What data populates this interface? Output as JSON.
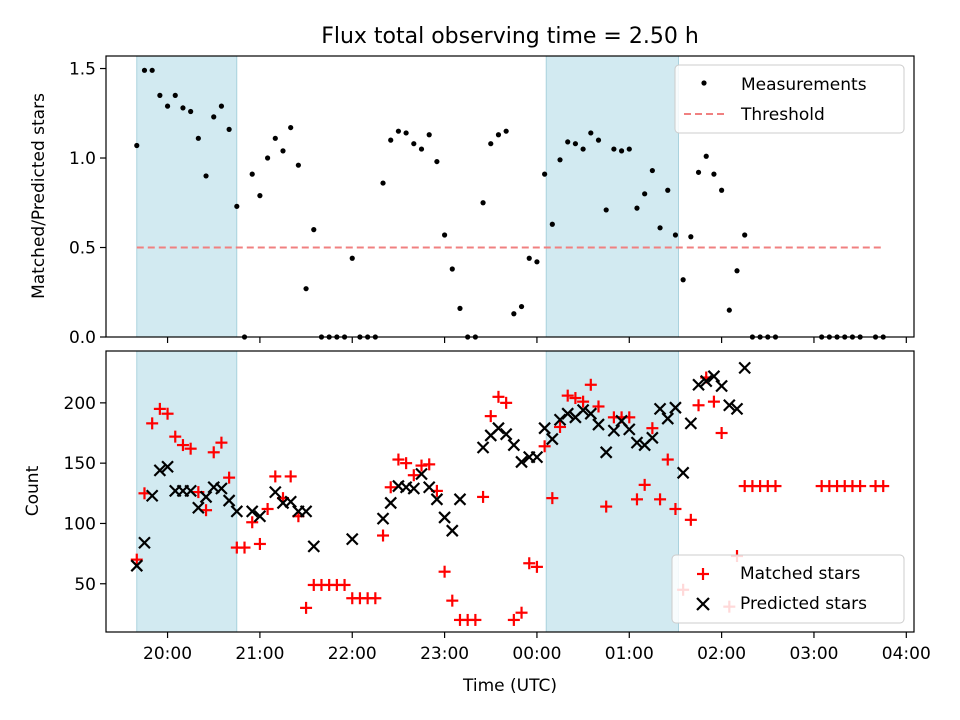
{
  "chart_data": [
    {
      "type": "scatter",
      "title": "Flux total observing time = 2.50 h",
      "ylabel": "Matched/Predicted stars",
      "xlabel": "",
      "xlim": [
        "19:20",
        "04:05"
      ],
      "ylim": [
        0,
        1.57
      ],
      "yticks": [
        "0.0",
        "0.5",
        "1.0",
        "1.5"
      ],
      "ytick_values": [
        0,
        0.5,
        1.0,
        1.5
      ],
      "legend_position": "upper right",
      "shaded_intervals": [
        [
          "19:40",
          "20:45"
        ],
        [
          "00:06",
          "01:32"
        ]
      ],
      "threshold": {
        "name": "Threshold",
        "value": 0.5,
        "x_range": [
          "19:40",
          "03:45"
        ],
        "color": "#f08080"
      },
      "series": [
        {
          "name": "Measurements",
          "marker": "dot",
          "color": "#000000",
          "points": [
            [
              "19:40",
              1.07
            ],
            [
              "19:45",
              1.49
            ],
            [
              "19:50",
              1.49
            ],
            [
              "19:55",
              1.35
            ],
            [
              "20:00",
              1.29
            ],
            [
              "20:05",
              1.35
            ],
            [
              "20:10",
              1.28
            ],
            [
              "20:15",
              1.26
            ],
            [
              "20:20",
              1.11
            ],
            [
              "20:25",
              0.9
            ],
            [
              "20:30",
              1.23
            ],
            [
              "20:35",
              1.29
            ],
            [
              "20:40",
              1.16
            ],
            [
              "20:45",
              0.73
            ],
            [
              "20:50",
              0.0
            ],
            [
              "20:55",
              0.91
            ],
            [
              "21:00",
              0.79
            ],
            [
              "21:05",
              1.0
            ],
            [
              "21:10",
              1.11
            ],
            [
              "21:15",
              1.04
            ],
            [
              "21:20",
              1.17
            ],
            [
              "21:25",
              0.96
            ],
            [
              "21:30",
              0.27
            ],
            [
              "21:35",
              0.6
            ],
            [
              "21:40",
              0.0
            ],
            [
              "21:45",
              0.0
            ],
            [
              "21:50",
              0.0
            ],
            [
              "21:55",
              0.0
            ],
            [
              "22:00",
              0.44
            ],
            [
              "22:05",
              0.0
            ],
            [
              "22:10",
              0.0
            ],
            [
              "22:15",
              0.0
            ],
            [
              "22:20",
              0.86
            ],
            [
              "22:25",
              1.1
            ],
            [
              "22:30",
              1.15
            ],
            [
              "22:35",
              1.14
            ],
            [
              "22:40",
              1.08
            ],
            [
              "22:45",
              1.05
            ],
            [
              "22:50",
              1.13
            ],
            [
              "22:55",
              0.98
            ],
            [
              "23:00",
              0.57
            ],
            [
              "23:05",
              0.38
            ],
            [
              "23:10",
              0.16
            ],
            [
              "23:15",
              0.0
            ],
            [
              "23:20",
              0.0
            ],
            [
              "23:25",
              0.75
            ],
            [
              "23:30",
              1.08
            ],
            [
              "23:35",
              1.13
            ],
            [
              "23:40",
              1.15
            ],
            [
              "23:45",
              0.13
            ],
            [
              "23:50",
              0.17
            ],
            [
              "23:55",
              0.44
            ],
            [
              "00:00",
              0.42
            ],
            [
              "00:05",
              0.91
            ],
            [
              "00:10",
              0.63
            ],
            [
              "00:15",
              0.99
            ],
            [
              "00:20",
              1.09
            ],
            [
              "00:25",
              1.08
            ],
            [
              "00:30",
              1.05
            ],
            [
              "00:35",
              1.14
            ],
            [
              "00:40",
              1.1
            ],
            [
              "00:45",
              0.71
            ],
            [
              "00:50",
              1.05
            ],
            [
              "00:55",
              1.04
            ],
            [
              "01:00",
              1.05
            ],
            [
              "01:05",
              0.72
            ],
            [
              "01:10",
              0.8
            ],
            [
              "01:15",
              0.93
            ],
            [
              "01:20",
              0.61
            ],
            [
              "01:25",
              0.82
            ],
            [
              "01:30",
              0.57
            ],
            [
              "01:35",
              0.32
            ],
            [
              "01:40",
              0.56
            ],
            [
              "01:45",
              0.92
            ],
            [
              "01:50",
              1.01
            ],
            [
              "01:55",
              0.91
            ],
            [
              "02:00",
              0.82
            ],
            [
              "02:05",
              0.15
            ],
            [
              "02:10",
              0.37
            ],
            [
              "02:15",
              0.57
            ],
            [
              "02:20",
              0.0
            ],
            [
              "02:25",
              0.0
            ],
            [
              "02:30",
              0.0
            ],
            [
              "02:35",
              0.0
            ],
            [
              "03:05",
              0.0
            ],
            [
              "03:10",
              0.0
            ],
            [
              "03:15",
              0.0
            ],
            [
              "03:20",
              0.0
            ],
            [
              "03:25",
              0.0
            ],
            [
              "03:30",
              0.0
            ],
            [
              "03:40",
              0.0
            ],
            [
              "03:45",
              0.0
            ]
          ]
        }
      ],
      "legend": [
        "Measurements",
        "Threshold"
      ]
    },
    {
      "type": "scatter",
      "title": "",
      "ylabel": "Count",
      "xlabel": "Time (UTC)",
      "xlim": [
        "19:20",
        "04:05"
      ],
      "ylim": [
        10,
        243
      ],
      "yticks": [
        "50",
        "100",
        "150",
        "200"
      ],
      "ytick_values": [
        50,
        100,
        150,
        200
      ],
      "xticks": [
        "20:00",
        "21:00",
        "22:00",
        "23:00",
        "00:00",
        "01:00",
        "02:00",
        "03:00",
        "04:00"
      ],
      "legend_position": "lower right",
      "shaded_intervals": [
        [
          "19:40",
          "20:45"
        ],
        [
          "00:06",
          "01:32"
        ]
      ],
      "series": [
        {
          "name": "Matched stars",
          "marker": "plus",
          "color": "#ff0000",
          "points": [
            [
              "19:40",
              70
            ],
            [
              "19:45",
              125
            ],
            [
              "19:50",
              183
            ],
            [
              "19:55",
              195
            ],
            [
              "20:00",
              191
            ],
            [
              "20:05",
              172
            ],
            [
              "20:10",
              165
            ],
            [
              "20:15",
              162
            ],
            [
              "20:20",
              126
            ],
            [
              "20:25",
              111
            ],
            [
              "20:30",
              159
            ],
            [
              "20:35",
              167
            ],
            [
              "20:40",
              138
            ],
            [
              "20:45",
              80
            ],
            [
              "20:50",
              80
            ],
            [
              "20:55",
              101
            ],
            [
              "21:00",
              83
            ],
            [
              "21:05",
              112
            ],
            [
              "21:10",
              139
            ],
            [
              "21:15",
              121
            ],
            [
              "21:20",
              139
            ],
            [
              "21:25",
              106
            ],
            [
              "21:30",
              30
            ],
            [
              "21:35",
              49
            ],
            [
              "21:40",
              49
            ],
            [
              "21:45",
              49
            ],
            [
              "21:50",
              49
            ],
            [
              "21:55",
              49
            ],
            [
              "22:00",
              38
            ],
            [
              "22:05",
              38
            ],
            [
              "22:10",
              38
            ],
            [
              "22:15",
              38
            ],
            [
              "22:20",
              90
            ],
            [
              "22:25",
              130
            ],
            [
              "22:30",
              153
            ],
            [
              "22:35",
              150
            ],
            [
              "22:40",
              140
            ],
            [
              "22:45",
              148
            ],
            [
              "22:50",
              149
            ],
            [
              "22:55",
              127
            ],
            [
              "23:00",
              60
            ],
            [
              "23:05",
              36
            ],
            [
              "23:10",
              20
            ],
            [
              "23:15",
              20
            ],
            [
              "23:20",
              20
            ],
            [
              "23:25",
              122
            ],
            [
              "23:30",
              189
            ],
            [
              "23:35",
              205
            ],
            [
              "23:40",
              200
            ],
            [
              "23:45",
              20
            ],
            [
              "23:50",
              26
            ],
            [
              "23:55",
              67
            ],
            [
              "00:00",
              64
            ],
            [
              "00:05",
              164
            ],
            [
              "00:10",
              121
            ],
            [
              "00:15",
              180
            ],
            [
              "00:20",
              206
            ],
            [
              "00:25",
              204
            ],
            [
              "00:30",
              201
            ],
            [
              "00:35",
              215
            ],
            [
              "00:40",
              197
            ],
            [
              "00:45",
              114
            ],
            [
              "00:50",
              188
            ],
            [
              "00:55",
              188
            ],
            [
              "01:00",
              188
            ],
            [
              "01:05",
              120
            ],
            [
              "01:10",
              132
            ],
            [
              "01:15",
              179
            ],
            [
              "01:20",
              120
            ],
            [
              "01:25",
              153
            ],
            [
              "01:30",
              112
            ],
            [
              "01:35",
              45
            ],
            [
              "01:40",
              103
            ],
            [
              "01:45",
              198
            ],
            [
              "01:50",
              221
            ],
            [
              "01:55",
              201
            ],
            [
              "02:00",
              175
            ],
            [
              "02:05",
              31
            ],
            [
              "02:10",
              73
            ],
            [
              "02:15",
              131
            ],
            [
              "02:20",
              131
            ],
            [
              "02:25",
              131
            ],
            [
              "02:30",
              131
            ],
            [
              "02:35",
              131
            ],
            [
              "03:05",
              131
            ],
            [
              "03:10",
              131
            ],
            [
              "03:15",
              131
            ],
            [
              "03:20",
              131
            ],
            [
              "03:25",
              131
            ],
            [
              "03:30",
              131
            ],
            [
              "03:40",
              131
            ],
            [
              "03:45",
              131
            ]
          ]
        },
        {
          "name": "Predicted stars",
          "marker": "x",
          "color": "#000000",
          "points": [
            [
              "19:40",
              65
            ],
            [
              "19:45",
              84
            ],
            [
              "19:50",
              123
            ],
            [
              "19:55",
              144
            ],
            [
              "20:00",
              147
            ],
            [
              "20:05",
              127
            ],
            [
              "20:10",
              127
            ],
            [
              "20:15",
              127
            ],
            [
              "20:20",
              113
            ],
            [
              "20:25",
              122
            ],
            [
              "20:30",
              130
            ],
            [
              "20:35",
              129
            ],
            [
              "20:40",
              119
            ],
            [
              "20:45",
              110
            ],
            [
              "20:55",
              110
            ],
            [
              "21:00",
              106
            ],
            [
              "21:10",
              126
            ],
            [
              "21:15",
              117
            ],
            [
              "21:20",
              118
            ],
            [
              "21:25",
              110
            ],
            [
              "21:30",
              110
            ],
            [
              "21:35",
              81
            ],
            [
              "22:00",
              87
            ],
            [
              "22:20",
              104
            ],
            [
              "22:25",
              117
            ],
            [
              "22:30",
              131
            ],
            [
              "22:35",
              130
            ],
            [
              "22:40",
              129
            ],
            [
              "22:45",
              141
            ],
            [
              "22:50",
              130
            ],
            [
              "22:55",
              120
            ],
            [
              "23:00",
              105
            ],
            [
              "23:05",
              94
            ],
            [
              "23:10",
              120
            ],
            [
              "23:25",
              163
            ],
            [
              "23:30",
              173
            ],
            [
              "23:35",
              179
            ],
            [
              "23:40",
              174
            ],
            [
              "23:45",
              165
            ],
            [
              "23:50",
              151
            ],
            [
              "23:55",
              155
            ],
            [
              "00:00",
              155
            ],
            [
              "00:05",
              179
            ],
            [
              "00:10",
              170
            ],
            [
              "00:15",
              186
            ],
            [
              "00:20",
              191
            ],
            [
              "00:25",
              188
            ],
            [
              "00:30",
              194
            ],
            [
              "00:35",
              191
            ],
            [
              "00:40",
              182
            ],
            [
              "00:45",
              159
            ],
            [
              "00:50",
              177
            ],
            [
              "00:55",
              185
            ],
            [
              "01:00",
              178
            ],
            [
              "01:05",
              167
            ],
            [
              "01:10",
              165
            ],
            [
              "01:15",
              171
            ],
            [
              "01:20",
              195
            ],
            [
              "01:25",
              187
            ],
            [
              "01:30",
              196
            ],
            [
              "01:35",
              142
            ],
            [
              "01:40",
              183
            ],
            [
              "01:45",
              215
            ],
            [
              "01:50",
              218
            ],
            [
              "01:55",
              222
            ],
            [
              "02:00",
              214
            ],
            [
              "02:05",
              198
            ],
            [
              "02:10",
              195
            ],
            [
              "02:15",
              229
            ]
          ]
        }
      ],
      "legend": [
        "Matched stars",
        "Predicted stars"
      ]
    }
  ]
}
